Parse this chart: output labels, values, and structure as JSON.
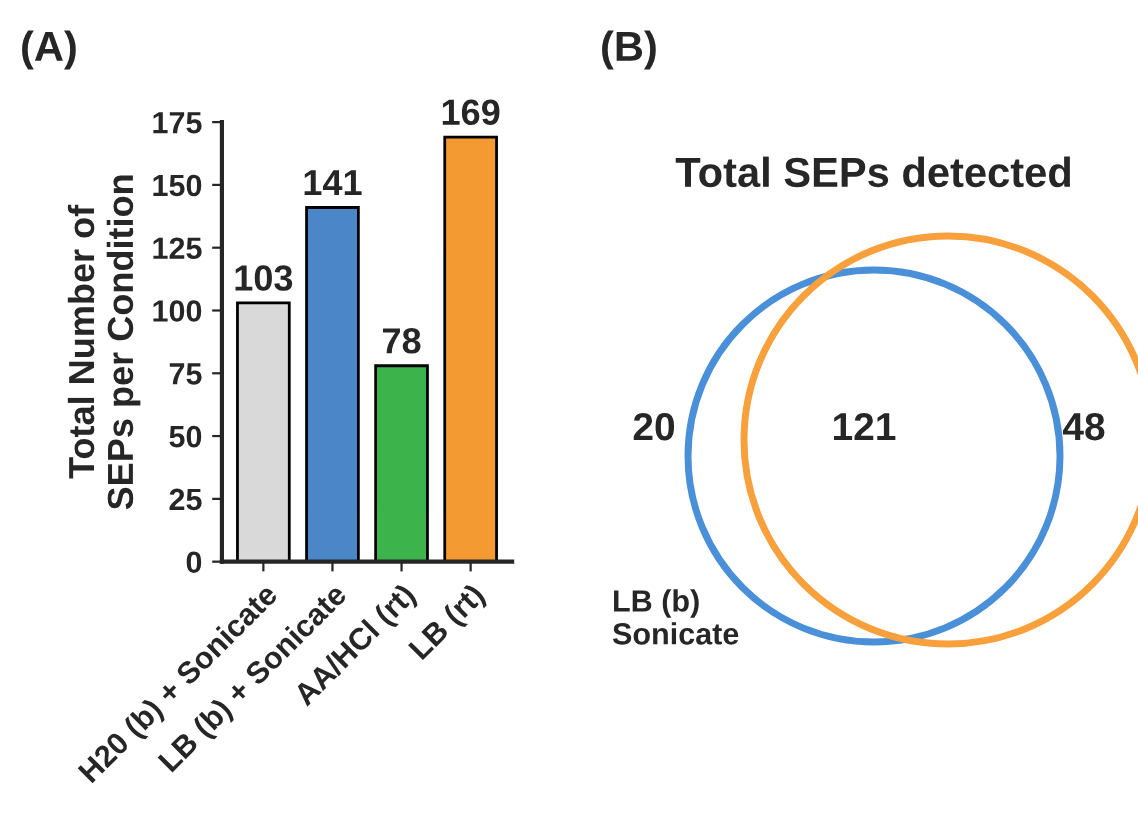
{
  "chart_data": [
    {
      "type": "bar",
      "title": "(A)",
      "ylabel": "Total Number of\nSEPs per Condition",
      "categories": [
        "H20 (b) + Sonicate",
        "LB (b) + Sonicate",
        "AA/HCl (rt)",
        "LB (rt)"
      ],
      "values": [
        103,
        141,
        78,
        169
      ],
      "colors": [
        "#d9d9d9",
        "#4a86c8",
        "#3cb44b",
        "#f39a33"
      ],
      "ylim": [
        0,
        175
      ],
      "yticks": [
        0,
        25,
        50,
        75,
        100,
        125,
        150,
        175
      ],
      "data_labels": true,
      "grid": false,
      "legend": false
    },
    {
      "type": "other",
      "title": "(B)",
      "subtitle": "Total SEPs detected",
      "categories": [
        null,
        null,
        null
      ],
      "values": [
        20,
        121,
        48
      ],
      "data_labels": true,
      "annotations": [
        "LB (b)\nSonicate"
      ]
    }
  ]
}
